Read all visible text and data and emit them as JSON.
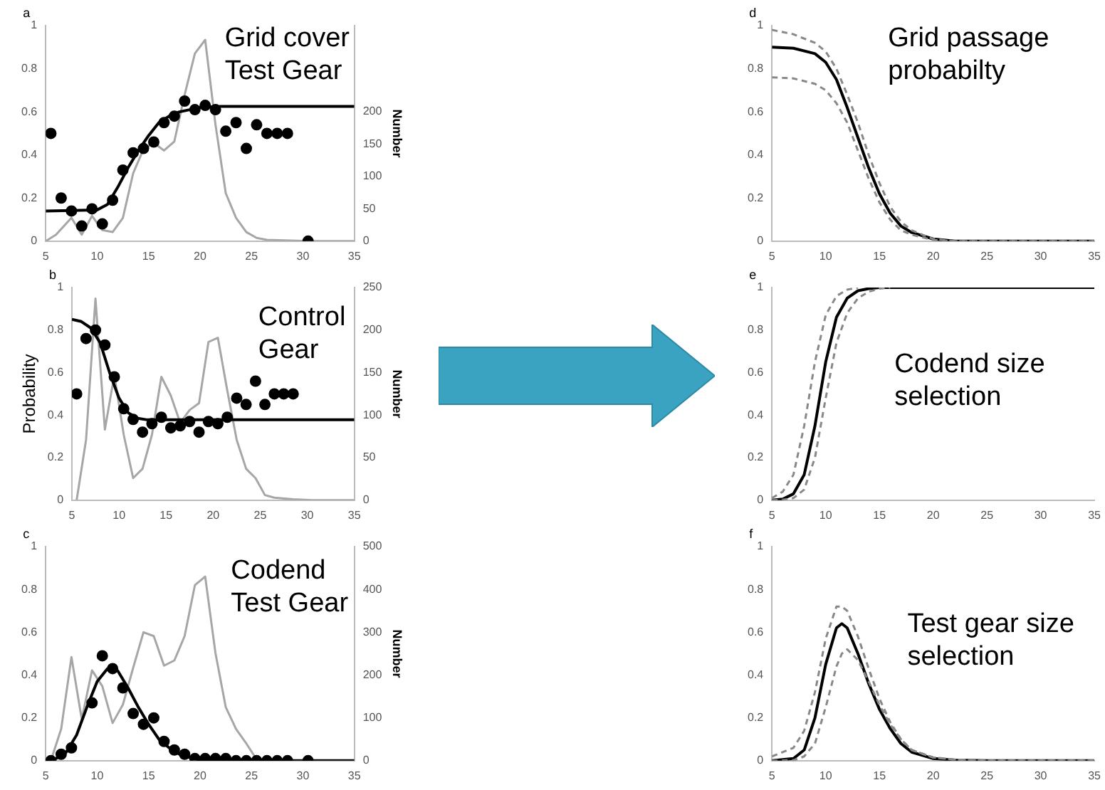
{
  "chart_data": [
    {
      "type": "line",
      "title": "Grid cover\nTest Gear",
      "annotations": [
        "a"
      ],
      "y2label": "Number",
      "xlim": [
        5,
        35
      ],
      "xticks": [
        5,
        10,
        15,
        20,
        25,
        30,
        35
      ],
      "ylim": [
        0,
        1
      ],
      "yticks": [
        0,
        0.2,
        0.4,
        0.6,
        0.8,
        1
      ],
      "y2lim": [
        0,
        333
      ],
      "y2ticks": [
        0,
        50,
        100,
        150,
        200
      ],
      "series": [
        {
          "type": "line",
          "axis": "y2",
          "color": "#a6a6a6",
          "x": [
            5,
            6,
            7.5,
            8.5,
            9.5,
            10.5,
            11.5,
            12.5,
            13.5,
            14.5,
            15.5,
            16.5,
            17.5,
            18.5,
            19.5,
            20.5,
            21.5,
            22.5,
            23.5,
            24.5,
            25.5,
            26.5,
            30.5,
            35
          ],
          "values": [
            0,
            10,
            36,
            10,
            39,
            17,
            14,
            36,
            105,
            142,
            152,
            140,
            154,
            226,
            290,
            311,
            180,
            74,
            36,
            14,
            5,
            2,
            0,
            0
          ]
        },
        {
          "type": "line",
          "color": "#000000",
          "x": [
            5,
            10,
            11,
            12,
            13,
            14,
            15,
            16,
            17,
            18,
            19,
            20,
            22,
            35
          ],
          "values": [
            0.14,
            0.145,
            0.17,
            0.25,
            0.34,
            0.42,
            0.49,
            0.55,
            0.58,
            0.6,
            0.61,
            0.62,
            0.625,
            0.625
          ]
        },
        {
          "type": "scatter",
          "marker": "circle",
          "color": "#000000",
          "x": [
            5.5,
            6.5,
            7.5,
            8.5,
            9.5,
            10.5,
            11.5,
            12.5,
            13.5,
            14.5,
            15.5,
            16.5,
            17.5,
            18.5,
            19.5,
            20.5,
            21.5,
            22.5,
            23.5,
            24.5,
            25.5,
            26.5,
            27.5,
            28.5,
            30.5
          ],
          "values": [
            0.5,
            0.2,
            0.14,
            0.07,
            0.15,
            0.08,
            0.19,
            0.33,
            0.41,
            0.43,
            0.46,
            0.55,
            0.58,
            0.65,
            0.61,
            0.63,
            0.61,
            0.51,
            0.55,
            0.43,
            0.54,
            0.5,
            0.5,
            0.5,
            0
          ]
        }
      ]
    },
    {
      "type": "line",
      "title": "Control\nGear",
      "annotations": [
        "b"
      ],
      "ylabel": "Probability",
      "y2label": "Number",
      "xlim": [
        5,
        35
      ],
      "xticks": [
        5,
        10,
        15,
        20,
        25,
        30,
        35
      ],
      "ylim": [
        0,
        1
      ],
      "yticks": [
        0,
        0.2,
        0.4,
        0.6,
        0.8,
        1
      ],
      "y2lim": [
        0,
        250
      ],
      "y2ticks": [
        0,
        50,
        100,
        150,
        200,
        250
      ],
      "series": [
        {
          "type": "line",
          "axis": "y2",
          "color": "#a6a6a6",
          "x": [
            5.5,
            6.5,
            7.5,
            8.5,
            9.5,
            10.5,
            11.5,
            12.5,
            13.5,
            14.5,
            15.5,
            16.5,
            17.5,
            18.5,
            19.5,
            20.5,
            21.5,
            22.5,
            23.5,
            24.5,
            25.5,
            26.5,
            28.5,
            30.5,
            35
          ],
          "values": [
            0,
            71,
            237,
            83,
            147,
            77,
            26,
            37,
            77,
            145,
            123,
            91,
            106,
            114,
            186,
            191,
            129,
            71,
            37,
            26,
            6,
            3,
            1,
            0,
            0
          ]
        },
        {
          "type": "line",
          "color": "#000000",
          "x": [
            5,
            6,
            7,
            8,
            9,
            10,
            11,
            12,
            13,
            35
          ],
          "values": [
            0.85,
            0.84,
            0.81,
            0.74,
            0.6,
            0.48,
            0.41,
            0.385,
            0.378,
            0.378
          ]
        },
        {
          "type": "scatter",
          "marker": "circle",
          "color": "#000000",
          "x": [
            5.5,
            6.5,
            7.5,
            8.5,
            9.5,
            10.5,
            11.5,
            12.5,
            13.5,
            14.5,
            15.5,
            16.5,
            17.5,
            18.5,
            19.5,
            20.5,
            21.5,
            22.5,
            23.5,
            24.5,
            25.5,
            26.5,
            27.5,
            28.5
          ],
          "values": [
            0.5,
            0.76,
            0.8,
            0.73,
            0.58,
            0.43,
            0.38,
            0.32,
            0.36,
            0.39,
            0.34,
            0.35,
            0.37,
            0.32,
            0.37,
            0.36,
            0.39,
            0.48,
            0.45,
            0.56,
            0.45,
            0.5,
            0.5,
            0.5
          ]
        }
      ]
    },
    {
      "type": "line",
      "title": "Codend\nTest Gear",
      "annotations": [
        "c"
      ],
      "y2label": "Number",
      "xlim": [
        5,
        35
      ],
      "xticks": [
        5,
        10,
        15,
        20,
        25,
        30,
        35
      ],
      "ylim": [
        0,
        1
      ],
      "yticks": [
        0,
        0.2,
        0.4,
        0.6,
        0.8,
        1
      ],
      "y2lim": [
        0,
        500
      ],
      "y2ticks": [
        0,
        100,
        200,
        300,
        400,
        500
      ],
      "series": [
        {
          "type": "line",
          "axis": "y2",
          "color": "#a6a6a6",
          "x": [
            5.5,
            6.5,
            7.5,
            8.5,
            9.5,
            10.5,
            11.5,
            12.5,
            13.5,
            14.5,
            15.5,
            16.5,
            17.5,
            18.5,
            19.5,
            20.5,
            21.5,
            22.5,
            23.5,
            24.5,
            25.5,
            26.5,
            35
          ],
          "values": [
            0,
            74,
            242,
            97,
            211,
            174,
            88,
            131,
            217,
            300,
            291,
            222,
            234,
            291,
            410,
            430,
            251,
            125,
            74,
            40,
            3,
            0,
            0
          ]
        },
        {
          "type": "line",
          "color": "#000000",
          "x": [
            5,
            6,
            7,
            8,
            9,
            10,
            11,
            12,
            13,
            14,
            15,
            16,
            17,
            18,
            19,
            20,
            22,
            35
          ],
          "values": [
            0,
            0.01,
            0.04,
            0.12,
            0.25,
            0.37,
            0.43,
            0.42,
            0.34,
            0.25,
            0.17,
            0.1,
            0.06,
            0.03,
            0.015,
            0.005,
            0,
            0
          ]
        },
        {
          "type": "scatter",
          "marker": "circle",
          "color": "#000000",
          "x": [
            5.5,
            6.5,
            7.5,
            9.5,
            10.5,
            11.5,
            12.5,
            13.5,
            14.5,
            15.5,
            16.5,
            17.5,
            18.5,
            19.5,
            20.5,
            21.5,
            22.5,
            23.5,
            24.5,
            25.5,
            26.5,
            27.5,
            28.5,
            30.5
          ],
          "values": [
            0,
            0.03,
            0.06,
            0.27,
            0.49,
            0.43,
            0.34,
            0.22,
            0.17,
            0.2,
            0.09,
            0.05,
            0.03,
            0.01,
            0.01,
            0.01,
            0.01,
            0,
            0,
            0,
            0,
            0,
            0,
            0
          ]
        }
      ]
    },
    {
      "type": "line",
      "title": "Grid passage\nprobabilty",
      "annotations": [
        "d"
      ],
      "xlim": [
        5,
        35
      ],
      "xticks": [
        5,
        10,
        15,
        20,
        25,
        30,
        35
      ],
      "ylim": [
        0,
        1
      ],
      "yticks": [
        0,
        0.2,
        0.4,
        0.6,
        0.8,
        1
      ],
      "series": [
        {
          "type": "line",
          "color": "#000000",
          "x": [
            5,
            7,
            9,
            10,
            11,
            12,
            13,
            14,
            15,
            16,
            17,
            18,
            20,
            22,
            35
          ],
          "values": [
            0.9,
            0.895,
            0.87,
            0.83,
            0.75,
            0.62,
            0.48,
            0.34,
            0.22,
            0.13,
            0.07,
            0.04,
            0.01,
            0,
            0
          ]
        },
        {
          "type": "line",
          "line_style": "dashed",
          "color": "#888888",
          "x": [
            5,
            7,
            9,
            10,
            11,
            12,
            13,
            14,
            15,
            16,
            17,
            18,
            20,
            22,
            35
          ],
          "values": [
            0.98,
            0.96,
            0.92,
            0.88,
            0.8,
            0.68,
            0.55,
            0.4,
            0.27,
            0.16,
            0.09,
            0.05,
            0.01,
            0,
            0
          ]
        },
        {
          "type": "line",
          "line_style": "dashed",
          "color": "#888888",
          "x": [
            5,
            7,
            9,
            10,
            11,
            12,
            13,
            14,
            15,
            16,
            17,
            18,
            20,
            22,
            35
          ],
          "values": [
            0.76,
            0.755,
            0.73,
            0.7,
            0.64,
            0.55,
            0.42,
            0.29,
            0.18,
            0.1,
            0.05,
            0.03,
            0.005,
            0,
            0
          ]
        }
      ]
    },
    {
      "type": "line",
      "title": "Codend size\nselection",
      "annotations": [
        "e"
      ],
      "xlim": [
        5,
        35
      ],
      "xticks": [
        5,
        10,
        15,
        20,
        25,
        30,
        35
      ],
      "ylim": [
        0,
        1
      ],
      "yticks": [
        0,
        0.2,
        0.4,
        0.6,
        0.8,
        1
      ],
      "series": [
        {
          "type": "line",
          "color": "#000000",
          "x": [
            5,
            6,
            7,
            8,
            9,
            10,
            11,
            12,
            13,
            14,
            15,
            16,
            35
          ],
          "values": [
            0,
            0.005,
            0.03,
            0.12,
            0.35,
            0.65,
            0.86,
            0.95,
            0.985,
            0.995,
            1,
            1,
            1
          ]
        },
        {
          "type": "line",
          "line_style": "dashed",
          "color": "#888888",
          "x": [
            5,
            6,
            7,
            8,
            9,
            10,
            11,
            12,
            13
          ],
          "values": [
            0.01,
            0.04,
            0.12,
            0.35,
            0.65,
            0.87,
            0.96,
            0.99,
            1
          ]
        },
        {
          "type": "line",
          "line_style": "dashed",
          "color": "#888888",
          "x": [
            5,
            6,
            7,
            8,
            9,
            10,
            11,
            12,
            13,
            14,
            15,
            16
          ],
          "values": [
            0,
            0.002,
            0.01,
            0.05,
            0.2,
            0.48,
            0.74,
            0.88,
            0.95,
            0.98,
            0.995,
            1
          ]
        }
      ]
    },
    {
      "type": "line",
      "title": "Test gear size\nselection",
      "annotations": [
        "f"
      ],
      "xlim": [
        5,
        35
      ],
      "xticks": [
        5,
        10,
        15,
        20,
        25,
        30,
        35
      ],
      "ylim": [
        0,
        1
      ],
      "yticks": [
        0,
        0.2,
        0.4,
        0.6,
        0.8,
        1
      ],
      "series": [
        {
          "type": "line",
          "color": "#000000",
          "x": [
            5,
            7,
            8,
            9,
            10,
            11,
            11.5,
            12,
            13,
            14,
            15,
            16,
            17,
            18,
            20,
            22,
            25,
            35
          ],
          "values": [
            0,
            0.01,
            0.05,
            0.2,
            0.45,
            0.62,
            0.64,
            0.62,
            0.5,
            0.36,
            0.24,
            0.15,
            0.08,
            0.04,
            0.01,
            0.003,
            0,
            0
          ]
        },
        {
          "type": "line",
          "line_style": "dashed",
          "color": "#888888",
          "x": [
            5,
            7,
            8,
            9,
            10,
            11,
            11.5,
            12,
            13,
            14,
            15,
            16,
            17,
            18,
            20,
            22,
            25,
            35
          ],
          "values": [
            0.02,
            0.06,
            0.14,
            0.32,
            0.57,
            0.72,
            0.72,
            0.7,
            0.58,
            0.43,
            0.29,
            0.18,
            0.1,
            0.05,
            0.015,
            0.005,
            0,
            0
          ]
        },
        {
          "type": "line",
          "line_style": "dashed",
          "color": "#888888",
          "x": [
            5,
            7,
            8,
            9,
            10,
            11,
            11.5,
            12,
            13,
            14,
            15,
            16,
            17,
            18,
            20,
            22,
            25,
            35
          ],
          "values": [
            0,
            0.002,
            0.02,
            0.08,
            0.25,
            0.44,
            0.5,
            0.52,
            0.47,
            0.37,
            0.26,
            0.17,
            0.1,
            0.05,
            0.015,
            0.005,
            0,
            0
          ]
        }
      ]
    }
  ]
}
